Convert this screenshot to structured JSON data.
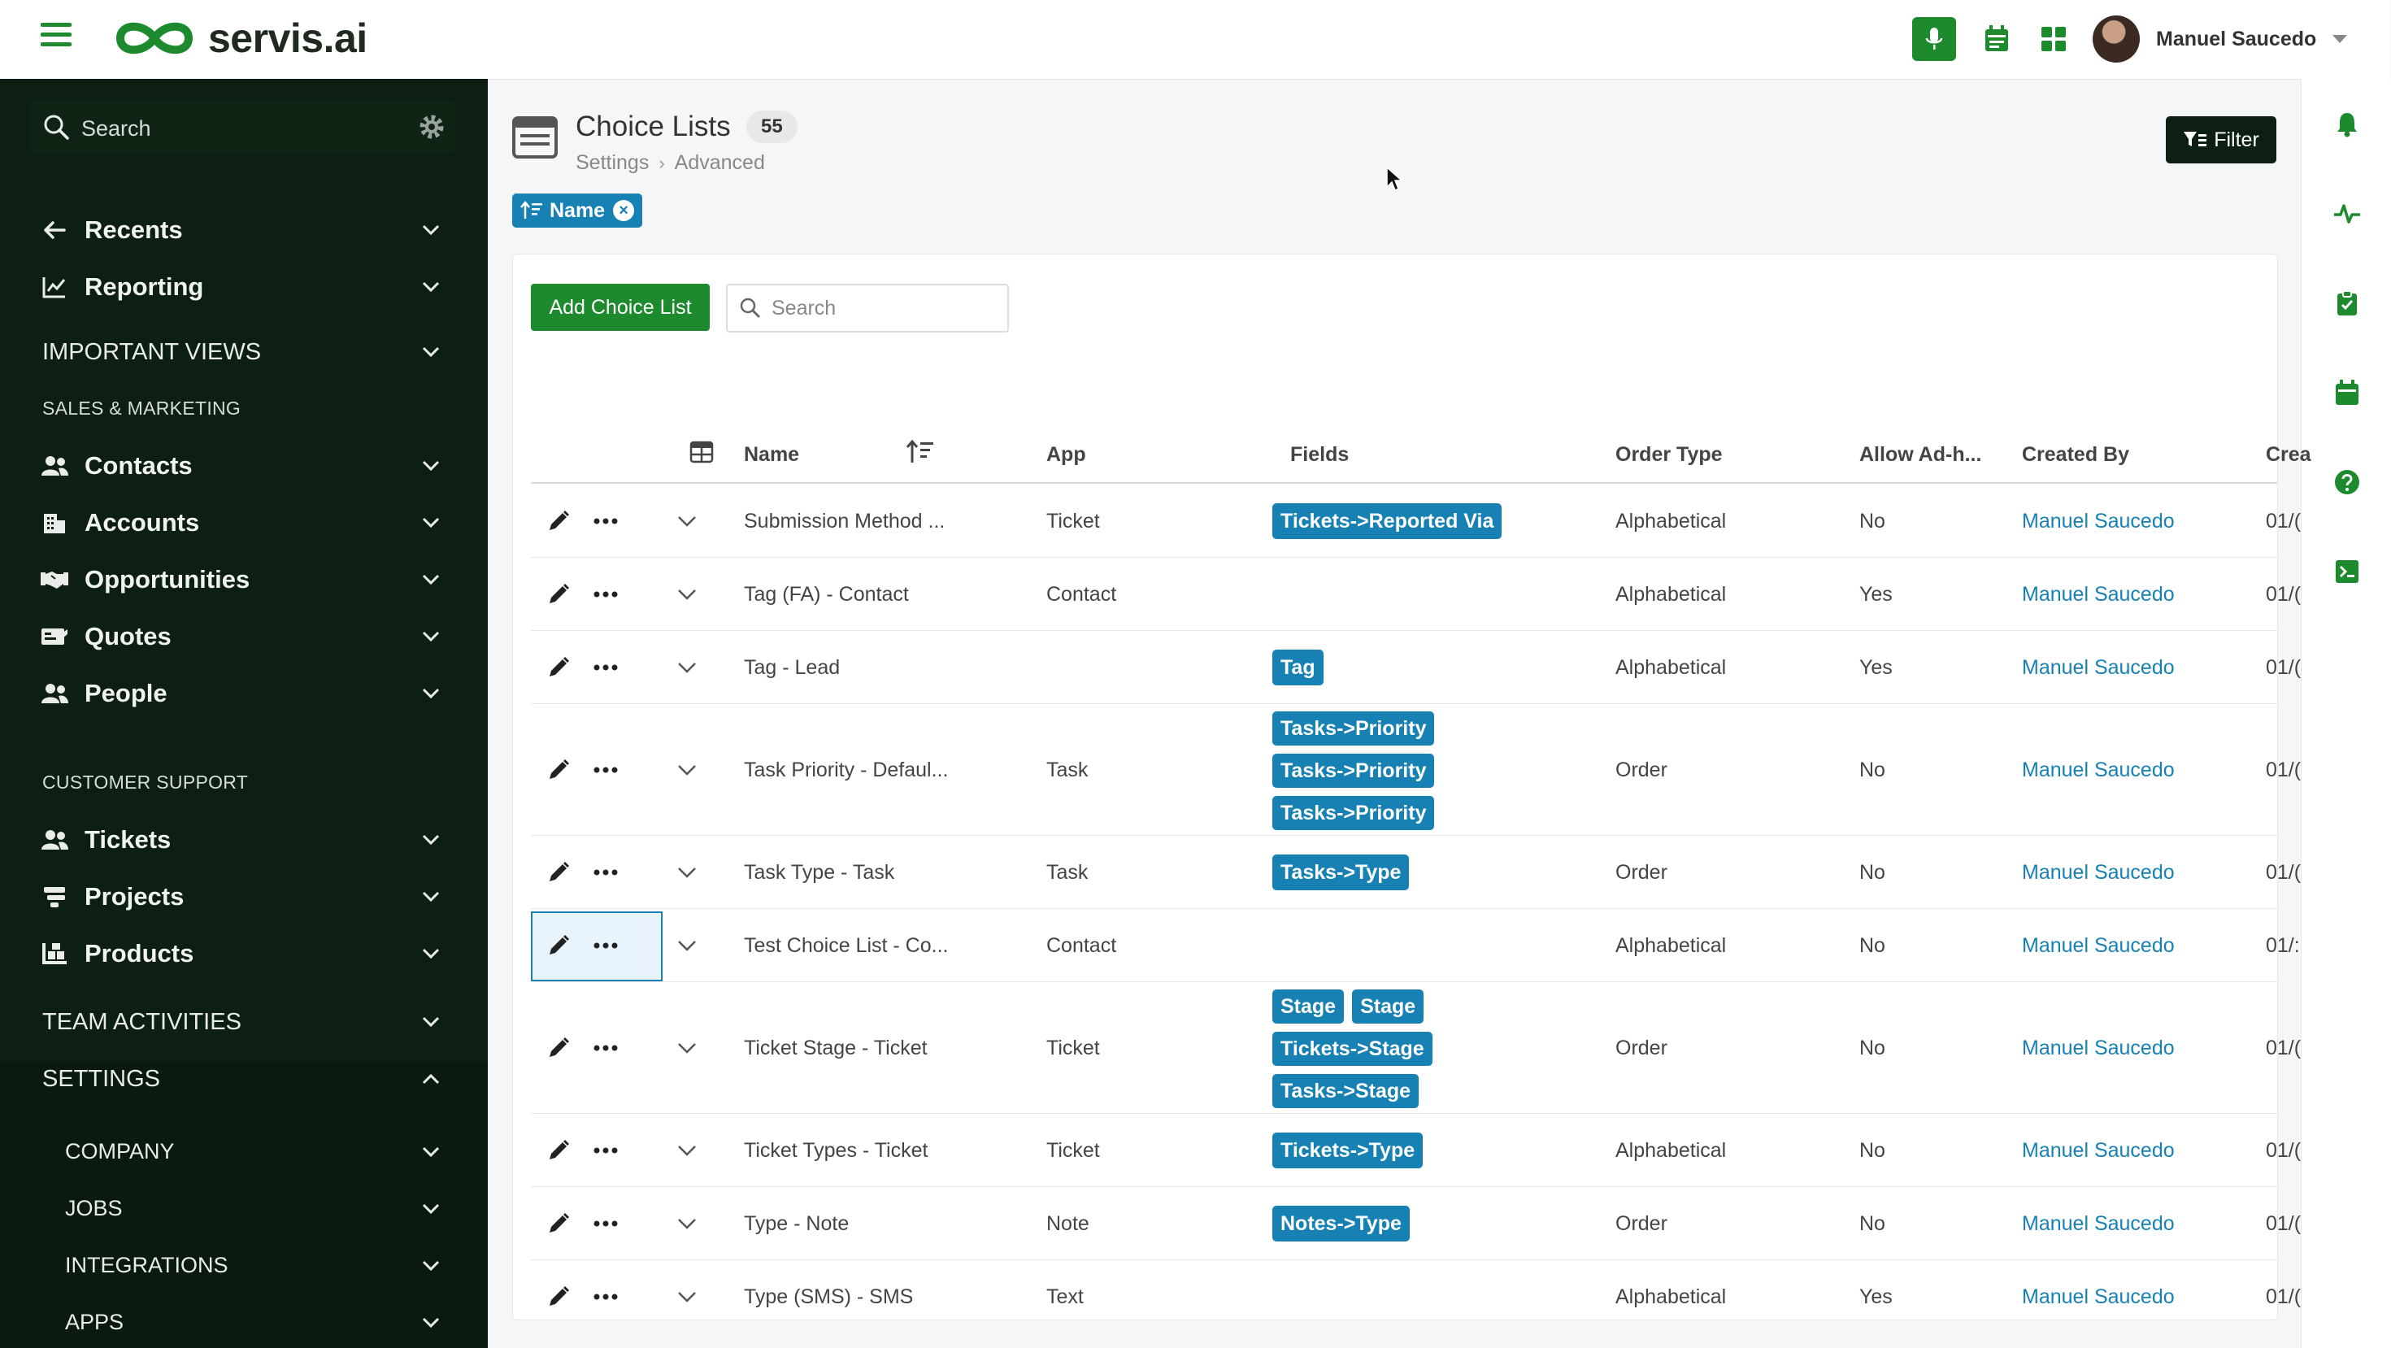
{
  "brand": {
    "name": "servis.ai",
    "accent": "#1e8a2e",
    "dark": "#0c1f12",
    "link": "#1781b4"
  },
  "topbar": {
    "user_name": "Manuel Saucedo",
    "icons": [
      "menu-icon",
      "microphone-icon",
      "calendar-icon",
      "apps-grid-icon",
      "chevron-down-icon"
    ]
  },
  "sidebar": {
    "search_placeholder": "Search",
    "top_items": [
      {
        "label": "Recents",
        "icon": "arrow-left-icon"
      },
      {
        "label": "Reporting",
        "icon": "chart-line-icon"
      }
    ],
    "important_views": "IMPORTANT VIEWS",
    "sales_section": "SALES & MARKETING",
    "sales_items": [
      {
        "label": "Contacts",
        "icon": "users-icon"
      },
      {
        "label": "Accounts",
        "icon": "building-icon"
      },
      {
        "label": "Opportunities",
        "icon": "handshake-icon"
      },
      {
        "label": "Quotes",
        "icon": "money-check-icon"
      },
      {
        "label": "People",
        "icon": "users-icon"
      }
    ],
    "support_section": "CUSTOMER SUPPORT",
    "support_items": [
      {
        "label": "Tickets",
        "icon": "users-icon"
      },
      {
        "label": "Projects",
        "icon": "projects-icon"
      },
      {
        "label": "Products",
        "icon": "boxes-icon"
      }
    ],
    "team_activities": "TEAM ACTIVITIES",
    "settings": "SETTINGS",
    "settings_items": [
      "COMPANY",
      "JOBS",
      "INTEGRATIONS",
      "APPS"
    ]
  },
  "rightbar": {
    "icons": [
      "bell-icon",
      "activity-icon",
      "clipboard-icon",
      "calendar-icon",
      "help-icon",
      "terminal-icon"
    ]
  },
  "page": {
    "title": "Choice Lists",
    "count": "55",
    "breadcrumb": [
      "Settings",
      "Advanced"
    ],
    "filter_label": "Filter",
    "sort_chip": "Name",
    "add_button": "Add Choice List",
    "search_placeholder": "Search"
  },
  "table": {
    "columns": [
      "Name",
      "App",
      "Fields",
      "Order Type",
      "Allow Ad-h...",
      "Created By",
      "Crea"
    ],
    "rows": [
      {
        "name": "Submission Method ...",
        "app": "Ticket",
        "fields": [
          [
            "Tickets->Reported Via"
          ]
        ],
        "order": "Alphabetical",
        "adhoc": "No",
        "created_by": "Manuel Saucedo",
        "created": "01/("
      },
      {
        "name": "Tag (FA) - Contact",
        "app": "Contact",
        "fields": [],
        "order": "Alphabetical",
        "adhoc": "Yes",
        "created_by": "Manuel Saucedo",
        "created": "01/("
      },
      {
        "name": "Tag - Lead",
        "app": "",
        "fields": [
          [
            "Tag"
          ]
        ],
        "order": "Alphabetical",
        "adhoc": "Yes",
        "created_by": "Manuel Saucedo",
        "created": "01/("
      },
      {
        "name": "Task Priority - Defaul...",
        "app": "Task",
        "fields": [
          [
            "Tasks->Priority"
          ],
          [
            "Tasks->Priority"
          ],
          [
            "Tasks->Priority"
          ]
        ],
        "order": "Order",
        "adhoc": "No",
        "created_by": "Manuel Saucedo",
        "created": "01/("
      },
      {
        "name": "Task Type - Task",
        "app": "Task",
        "fields": [
          [
            "Tasks->Type"
          ]
        ],
        "order": "Order",
        "adhoc": "No",
        "created_by": "Manuel Saucedo",
        "created": "01/("
      },
      {
        "name": "Test Choice List - Co...",
        "app": "Contact",
        "fields": [],
        "order": "Alphabetical",
        "adhoc": "No",
        "created_by": "Manuel Saucedo",
        "created": "01/:"
      },
      {
        "name": "Ticket Stage - Ticket",
        "app": "Ticket",
        "fields": [
          [
            "Stage",
            "Stage"
          ],
          [
            "Tickets->Stage"
          ],
          [
            "Tasks->Stage"
          ]
        ],
        "order": "Order",
        "adhoc": "No",
        "created_by": "Manuel Saucedo",
        "created": "01/("
      },
      {
        "name": "Ticket Types - Ticket",
        "app": "Ticket",
        "fields": [
          [
            "Tickets->Type"
          ]
        ],
        "order": "Alphabetical",
        "adhoc": "No",
        "created_by": "Manuel Saucedo",
        "created": "01/("
      },
      {
        "name": "Type - Note",
        "app": "Note",
        "fields": [
          [
            "Notes->Type"
          ]
        ],
        "order": "Order",
        "adhoc": "No",
        "created_by": "Manuel Saucedo",
        "created": "01/("
      },
      {
        "name": "Type (SMS) - SMS",
        "app": "Text",
        "fields": [],
        "order": "Alphabetical",
        "adhoc": "Yes",
        "created_by": "Manuel Saucedo",
        "created": "01/("
      }
    ]
  }
}
